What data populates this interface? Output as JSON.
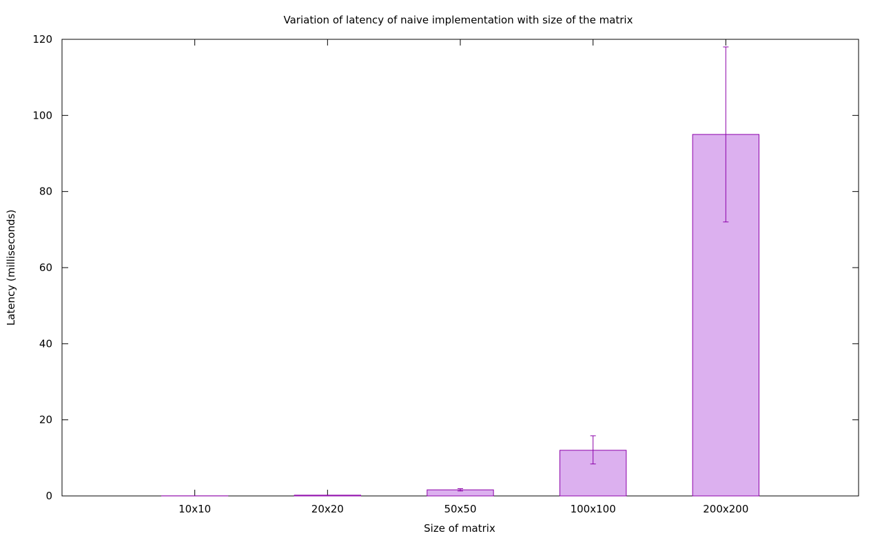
{
  "chart_data": {
    "type": "bar",
    "title": "Variation of latency of naive implementation with size of the matrix",
    "xlabel": "Size of matrix",
    "ylabel": "Latency (milliseconds)",
    "categories": [
      "10x10",
      "20x20",
      "50x50",
      "100x100",
      "200x200"
    ],
    "values": [
      0.03,
      0.2,
      1.6,
      12.0,
      95.0
    ],
    "error_low": [
      0.03,
      0.2,
      1.3,
      8.4,
      72.0
    ],
    "error_high": [
      0.03,
      0.2,
      1.9,
      15.8,
      118.0
    ],
    "ylim": [
      0,
      120
    ],
    "yticks": [
      "0",
      "20",
      "40",
      "60",
      "80",
      "100",
      "120"
    ],
    "grid": false,
    "bar_fill": "#dcb0ef",
    "bar_stroke": "#8b00a8"
  }
}
